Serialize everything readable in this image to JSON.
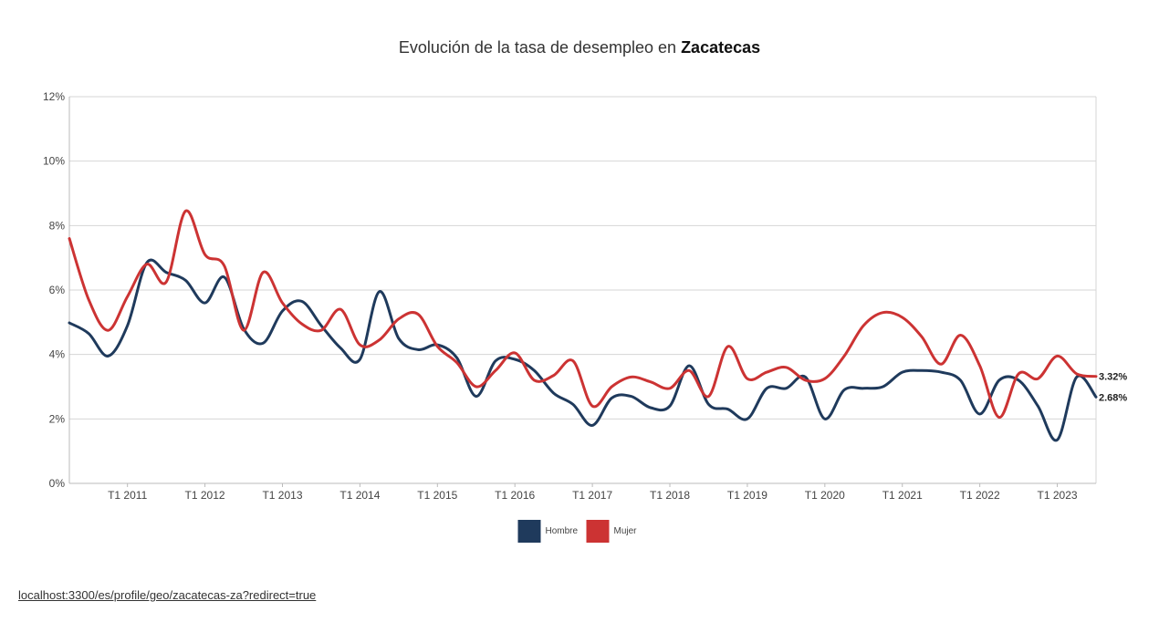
{
  "chart_data": {
    "type": "line",
    "title_prefix": "Evolución de la tasa de desempleo en ",
    "title_emphasis": "Zacatecas",
    "xlabel": "",
    "ylabel": "",
    "ylim": [
      0,
      12
    ],
    "y_ticks": [
      "0%",
      "2%",
      "4%",
      "6%",
      "8%",
      "10%",
      "12%"
    ],
    "x_tick_labels": [
      "T1 2011",
      "T1 2012",
      "T1 2013",
      "T1 2014",
      "T1 2015",
      "T1 2016",
      "T1 2017",
      "T1 2018",
      "T1 2019",
      "T1 2020",
      "T1 2021",
      "T1 2022",
      "T1 2023"
    ],
    "x_tick_positions": [
      4,
      8,
      12,
      16,
      20,
      24,
      28,
      32,
      36,
      40,
      44,
      48,
      52
    ],
    "x_range": [
      1,
      54
    ],
    "grid": "horizontal",
    "legend_position": "bottom-center",
    "series": [
      {
        "name": "Hombre",
        "color": "#1f3a5c",
        "end_label": "2.68%",
        "values": [
          4.98,
          4.65,
          3.95,
          4.9,
          6.85,
          6.55,
          6.3,
          5.6,
          6.4,
          4.8,
          4.35,
          5.35,
          5.65,
          4.9,
          4.2,
          3.85,
          5.95,
          4.5,
          4.15,
          4.3,
          3.9,
          2.7,
          3.8,
          3.85,
          3.5,
          2.8,
          2.45,
          1.8,
          2.65,
          2.7,
          2.35,
          2.4,
          3.65,
          2.45,
          2.3,
          2.0,
          2.95,
          2.95,
          3.3,
          2.0,
          2.9,
          2.95,
          3.0,
          3.45,
          3.5,
          3.45,
          3.2,
          2.15,
          3.2,
          3.2,
          2.4,
          1.35,
          3.3,
          2.68
        ]
      },
      {
        "name": "Mujer",
        "color": "#cc3333",
        "end_label": "3.32%",
        "values": [
          7.6,
          5.7,
          4.75,
          5.8,
          6.8,
          6.25,
          8.45,
          7.1,
          6.75,
          4.75,
          6.55,
          5.6,
          4.95,
          4.75,
          5.4,
          4.3,
          4.45,
          5.1,
          5.25,
          4.25,
          3.75,
          3.0,
          3.5,
          4.05,
          3.2,
          3.35,
          3.8,
          2.4,
          3.0,
          3.3,
          3.15,
          2.95,
          3.5,
          2.7,
          4.25,
          3.25,
          3.45,
          3.6,
          3.2,
          3.25,
          3.95,
          4.9,
          5.3,
          5.15,
          4.55,
          3.7,
          4.6,
          3.65,
          2.05,
          3.4,
          3.25,
          3.95,
          3.4,
          3.32
        ]
      }
    ]
  },
  "footer": {
    "url": "localhost:3300/es/profile/geo/zacatecas-za?redirect=true"
  }
}
